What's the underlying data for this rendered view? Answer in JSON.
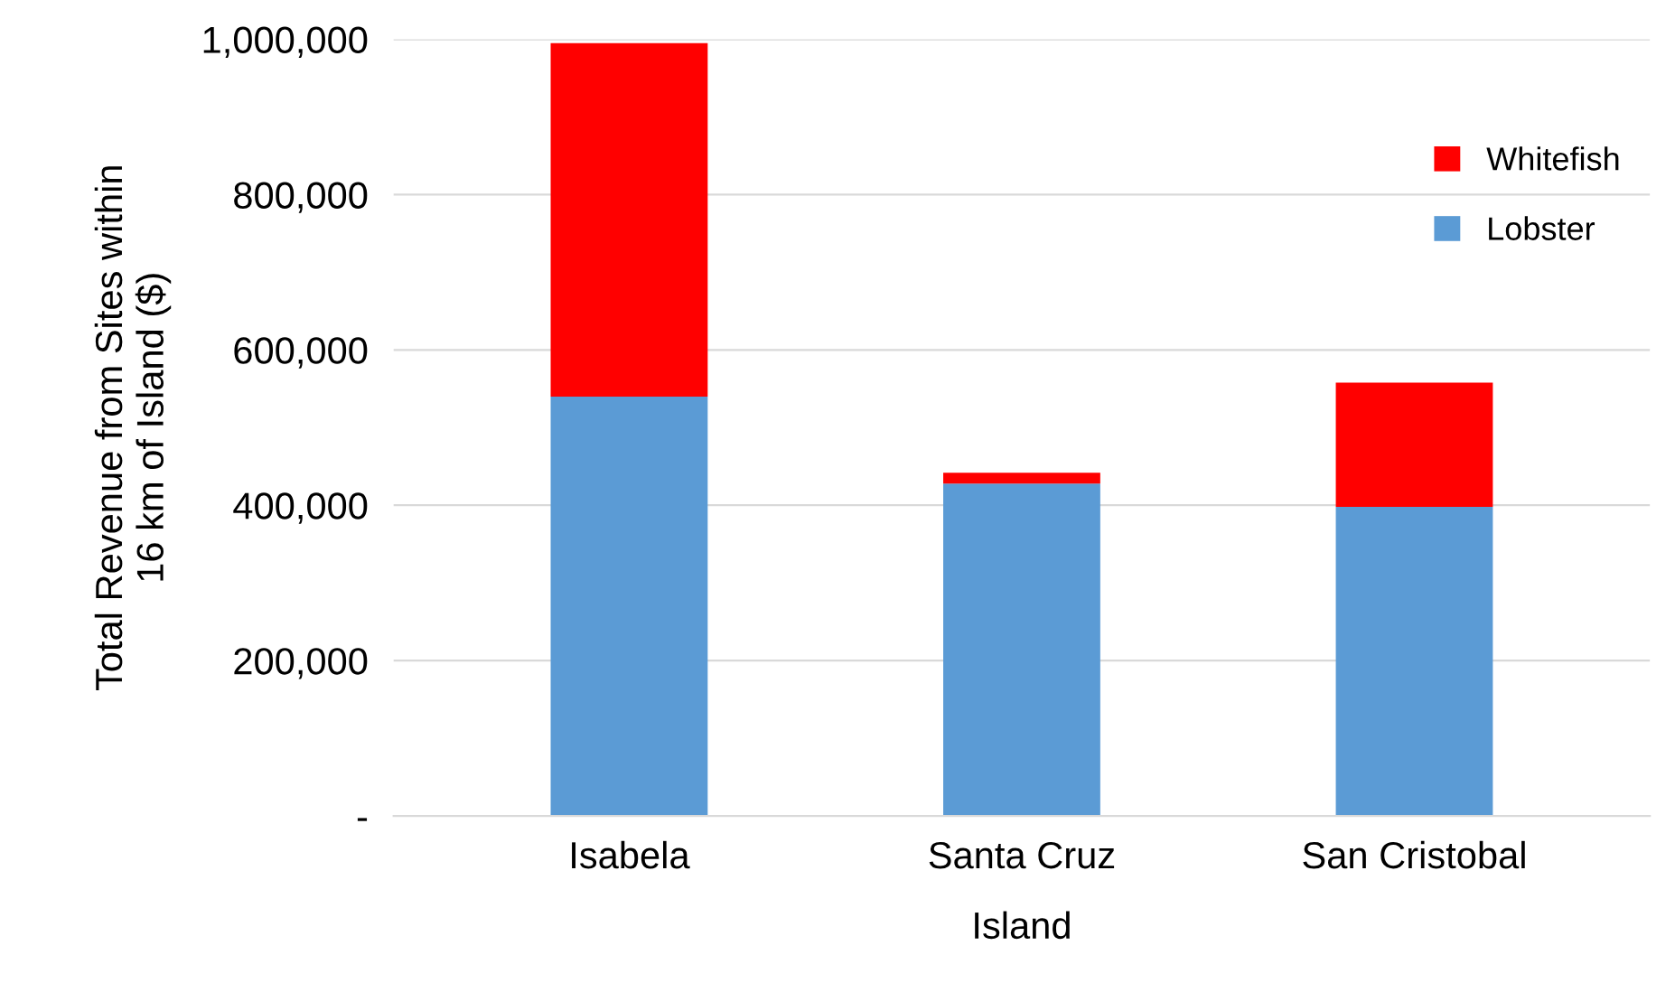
{
  "chart_data": {
    "type": "bar",
    "stacked": true,
    "xlabel": "Island",
    "ylabel": "Total Revenue from Sites within\n16 km of Island ($)",
    "categories": [
      "Isabela",
      "Santa Cruz",
      "San Cristobal"
    ],
    "series": [
      {
        "name": "Lobster",
        "color": "#5b9bd5",
        "values": [
          540000,
          428000,
          398000
        ]
      },
      {
        "name": "Whitefish",
        "color": "#ff0000",
        "values": [
          455000,
          14000,
          160000
        ]
      }
    ],
    "ylim": [
      0,
      1000000
    ],
    "yticks": [
      {
        "value": 0,
        "label": "-"
      },
      {
        "value": 200000,
        "label": "200,000"
      },
      {
        "value": 400000,
        "label": "400,000"
      },
      {
        "value": 600000,
        "label": "600,000"
      },
      {
        "value": 800000,
        "label": "800,000"
      },
      {
        "value": 1000000,
        "label": "1,000,000"
      }
    ],
    "grid": "y",
    "legend": "top right"
  }
}
